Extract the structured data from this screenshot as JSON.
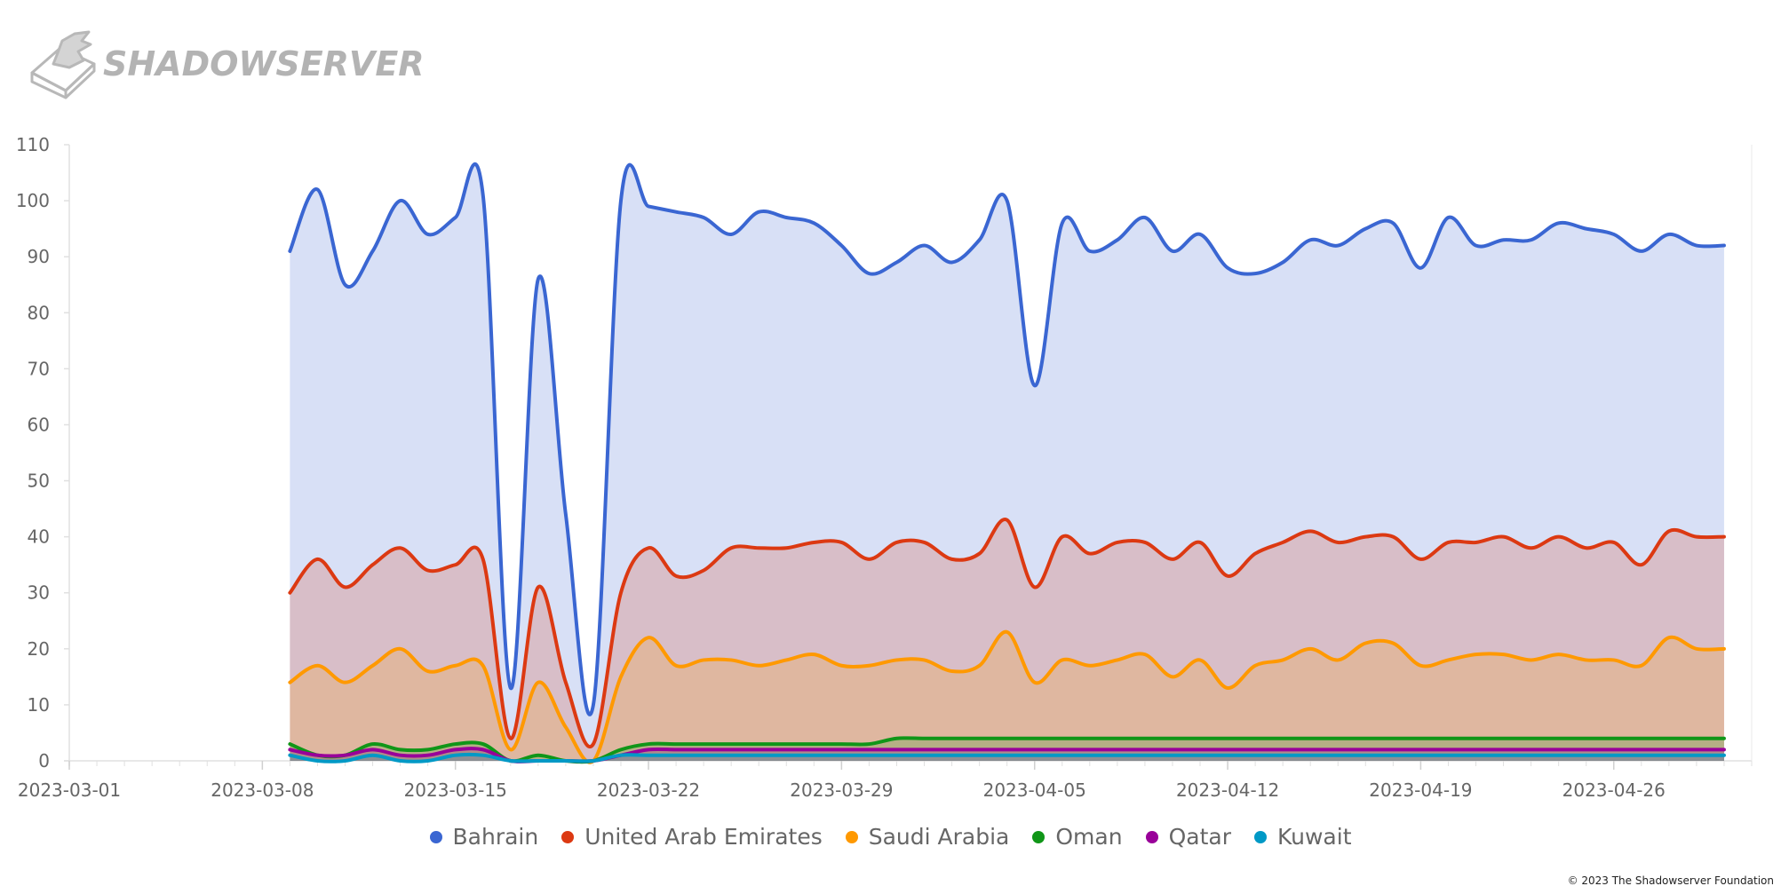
{
  "brand": {
    "name": "SHADOWSERVER",
    "logo_icon": "shadowserver-logo-icon"
  },
  "footer": {
    "copyright": "© 2023 The Shadowserver Foundation"
  },
  "chart_data": {
    "type": "area",
    "x_start": "2023-03-01",
    "x_end": "2023-05-01",
    "x_ticks": [
      "2023-03-01",
      "2023-03-08",
      "2023-03-15",
      "2023-03-22",
      "2023-03-29",
      "2023-04-05",
      "2023-04-12",
      "2023-04-19",
      "2023-04-26"
    ],
    "ylim": [
      0,
      110
    ],
    "y_ticks": [
      0,
      10,
      20,
      30,
      40,
      50,
      60,
      70,
      80,
      90,
      100,
      110
    ],
    "grid": false,
    "legend_position": "bottom-center",
    "x": [
      "2023-03-09",
      "2023-03-10",
      "2023-03-11",
      "2023-03-12",
      "2023-03-13",
      "2023-03-14",
      "2023-03-15",
      "2023-03-16",
      "2023-03-17",
      "2023-03-18",
      "2023-03-19",
      "2023-03-20",
      "2023-03-21",
      "2023-03-22",
      "2023-03-23",
      "2023-03-24",
      "2023-03-25",
      "2023-03-26",
      "2023-03-27",
      "2023-03-28",
      "2023-03-29",
      "2023-03-30",
      "2023-03-31",
      "2023-04-01",
      "2023-04-02",
      "2023-04-03",
      "2023-04-04",
      "2023-04-05",
      "2023-04-06",
      "2023-04-07",
      "2023-04-08",
      "2023-04-09",
      "2023-04-10",
      "2023-04-11",
      "2023-04-12",
      "2023-04-13",
      "2023-04-14",
      "2023-04-15",
      "2023-04-16",
      "2023-04-17",
      "2023-04-18",
      "2023-04-19",
      "2023-04-20",
      "2023-04-21",
      "2023-04-22",
      "2023-04-23",
      "2023-04-24",
      "2023-04-25",
      "2023-04-26",
      "2023-04-27",
      "2023-04-28",
      "2023-04-29",
      "2023-04-30"
    ],
    "series": [
      {
        "name": "Bahrain",
        "color": "#3a66d2",
        "values": [
          91,
          102,
          85,
          91,
          100,
          94,
          97,
          101,
          13,
          86,
          44,
          10,
          100,
          99,
          98,
          97,
          94,
          98,
          97,
          96,
          92,
          87,
          89,
          92,
          89,
          93,
          100,
          67,
          96,
          91,
          93,
          97,
          91,
          94,
          88,
          87,
          89,
          93,
          92,
          95,
          96,
          88,
          97,
          92,
          93,
          93,
          96,
          95,
          94,
          91,
          94,
          92,
          92
        ]
      },
      {
        "name": "United Arab Emirates",
        "color": "#dc3912",
        "values": [
          30,
          36,
          31,
          35,
          38,
          34,
          35,
          36,
          4,
          31,
          14,
          3,
          30,
          38,
          33,
          34,
          38,
          38,
          38,
          39,
          39,
          36,
          39,
          39,
          36,
          37,
          43,
          31,
          40,
          37,
          39,
          39,
          36,
          39,
          33,
          37,
          39,
          41,
          39,
          40,
          40,
          36,
          39,
          39,
          40,
          38,
          40,
          38,
          39,
          35,
          41,
          40,
          40
        ]
      },
      {
        "name": "Saudi Arabia",
        "color": "#ff9900",
        "values": [
          14,
          17,
          14,
          17,
          20,
          16,
          17,
          17,
          2,
          14,
          6,
          0,
          15,
          22,
          17,
          18,
          18,
          17,
          18,
          19,
          17,
          17,
          18,
          18,
          16,
          17,
          23,
          14,
          18,
          17,
          18,
          19,
          15,
          18,
          13,
          17,
          18,
          20,
          18,
          21,
          21,
          17,
          18,
          19,
          19,
          18,
          19,
          18,
          18,
          17,
          22,
          20,
          20
        ]
      },
      {
        "name": "Oman",
        "color": "#109618",
        "values": [
          3,
          1,
          1,
          3,
          2,
          2,
          3,
          3,
          0,
          1,
          0,
          0,
          2,
          3,
          3,
          3,
          3,
          3,
          3,
          3,
          3,
          3,
          4,
          4,
          4,
          4,
          4,
          4,
          4,
          4,
          4,
          4,
          4,
          4,
          4,
          4,
          4,
          4,
          4,
          4,
          4,
          4,
          4,
          4,
          4,
          4,
          4,
          4,
          4,
          4,
          4,
          4,
          4
        ]
      },
      {
        "name": "Qatar",
        "color": "#990099",
        "values": [
          2,
          1,
          1,
          2,
          1,
          1,
          2,
          2,
          0,
          0,
          0,
          0,
          1,
          2,
          2,
          2,
          2,
          2,
          2,
          2,
          2,
          2,
          2,
          2,
          2,
          2,
          2,
          2,
          2,
          2,
          2,
          2,
          2,
          2,
          2,
          2,
          2,
          2,
          2,
          2,
          2,
          2,
          2,
          2,
          2,
          2,
          2,
          2,
          2,
          2,
          2,
          2,
          2
        ]
      },
      {
        "name": "Kuwait",
        "color": "#0099c6",
        "values": [
          1,
          0,
          0,
          1,
          0,
          0,
          1,
          1,
          0,
          0,
          0,
          0,
          1,
          1,
          1,
          1,
          1,
          1,
          1,
          1,
          1,
          1,
          1,
          1,
          1,
          1,
          1,
          1,
          1,
          1,
          1,
          1,
          1,
          1,
          1,
          1,
          1,
          1,
          1,
          1,
          1,
          1,
          1,
          1,
          1,
          1,
          1,
          1,
          1,
          1,
          1,
          1,
          1
        ]
      }
    ]
  }
}
